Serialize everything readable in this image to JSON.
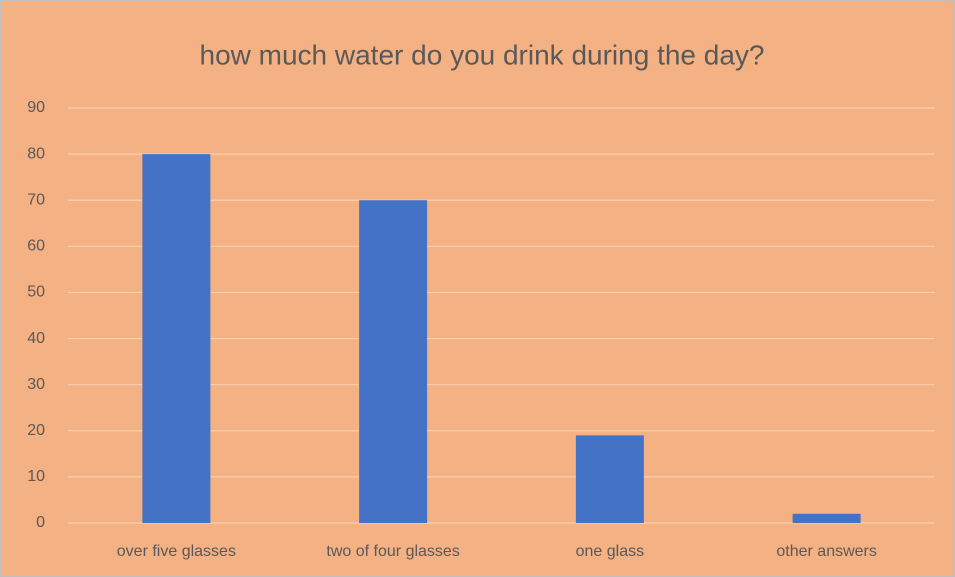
{
  "chart_data": {
    "type": "bar",
    "title": "how much water do you drink during the day?",
    "categories": [
      "over five glasses",
      "two of four glasses",
      "one glass",
      "other answers"
    ],
    "values": [
      80,
      70,
      19,
      2
    ],
    "color": "#4472c4",
    "background": "#f4b183",
    "ylim": [
      0,
      90
    ],
    "yticks": [
      0,
      10,
      20,
      30,
      40,
      50,
      60,
      70,
      80,
      90
    ],
    "grid": true
  }
}
